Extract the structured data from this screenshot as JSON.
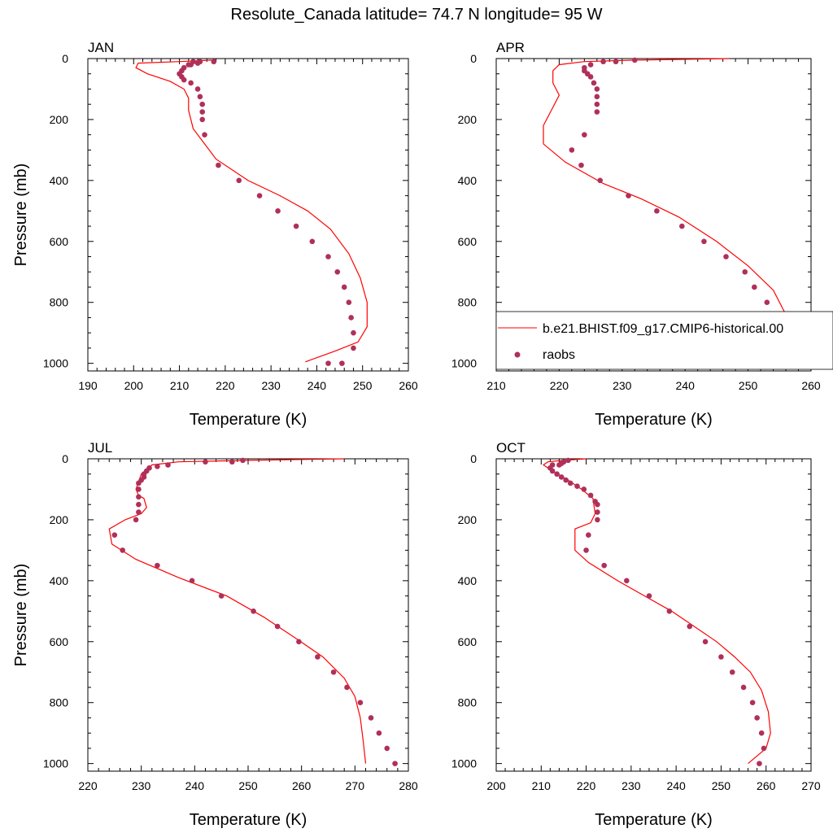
{
  "title": "Resolute_Canada  latitude= 74.7 N longitude= 95 W",
  "colors": {
    "model": "#ff0000",
    "obs": "#b0305a"
  },
  "legend": {
    "model_label": "b.e21.BHIST.f09_g17.CMIP6-historical.00",
    "obs_label": "raobs"
  },
  "chart_data": [
    {
      "type": "line",
      "panel": "JAN",
      "xlabel": "Temperature (K)",
      "ylabel": "Pressure (mb)",
      "xlim": [
        190,
        260
      ],
      "xticks": [
        190,
        200,
        210,
        220,
        230,
        240,
        250,
        260
      ],
      "ylim": [
        0,
        1025
      ],
      "yticks": [
        0,
        200,
        400,
        600,
        800,
        1000
      ],
      "y_reversed": true,
      "model": {
        "x": [
          217.0,
          210.0,
          201.0,
          200.5,
          203.0,
          208.0,
          211.0,
          212.0,
          212.0,
          213.0,
          218.0,
          225.0,
          232.0,
          238.0,
          243.0,
          247.0,
          249.5,
          251.0,
          251.0,
          249.0,
          244.0,
          237.5
        ],
        "y": [
          5,
          10,
          15,
          30,
          50,
          75,
          100,
          130,
          170,
          230,
          330,
          400,
          450,
          500,
          560,
          640,
          720,
          800,
          880,
          930,
          960,
          995
        ]
      },
      "obs": {
        "x": [
          217.5,
          214.5,
          214.0,
          213.0,
          212.5,
          212.0,
          211.0,
          210.5,
          210.0,
          210.5,
          211.0,
          212.5,
          214.0,
          214.5,
          215.0,
          215.0,
          215.0,
          215.5,
          218.5,
          223.0,
          227.5,
          231.5,
          235.5,
          239.0,
          242.5,
          244.5,
          246.0,
          247.0,
          247.5,
          248.0,
          248.0,
          245.5,
          242.5
        ],
        "y": [
          10,
          10,
          15,
          10,
          20,
          20,
          30,
          40,
          50,
          60,
          70,
          80,
          100,
          125,
          150,
          175,
          200,
          250,
          350,
          400,
          450,
          500,
          550,
          600,
          650,
          700,
          750,
          800,
          850,
          900,
          950,
          1000,
          1000
        ]
      }
    },
    {
      "type": "line",
      "panel": "APR",
      "xlabel": "Temperature (K)",
      "ylabel": "",
      "xlim": [
        210,
        260
      ],
      "xticks": [
        210,
        220,
        230,
        240,
        250,
        260
      ],
      "ylim": [
        0,
        1025
      ],
      "yticks": [
        0,
        200,
        400,
        600,
        800,
        1000
      ],
      "y_reversed": true,
      "model": {
        "x": [
          247.0,
          232.0,
          224.0,
          220.0,
          219.0,
          219.0,
          220.0,
          219.0,
          217.5,
          217.5,
          221.0,
          227.0,
          233.0,
          239.0,
          245.0,
          250.0,
          254.0,
          256.0,
          256.5,
          256.5,
          254.0,
          250.0
        ],
        "y": [
          0,
          5,
          10,
          20,
          40,
          80,
          120,
          160,
          220,
          280,
          340,
          410,
          460,
          520,
          600,
          680,
          760,
          840,
          900,
          960,
          990,
          1000
        ]
      },
      "obs": {
        "x": [
          232.0,
          229.0,
          227.0,
          225.0,
          224.0,
          224.0,
          224.5,
          225.0,
          225.5,
          226.0,
          226.0,
          226.0,
          226.0,
          224.0,
          222.0,
          223.5,
          226.5,
          231.0,
          235.5,
          239.5,
          243.0,
          246.5,
          249.5,
          251.0,
          253.0,
          253.5,
          254.0,
          253.0,
          251.0
        ],
        "y": [
          5,
          10,
          10,
          20,
          30,
          40,
          50,
          60,
          80,
          100,
          125,
          150,
          175,
          250,
          300,
          350,
          400,
          450,
          500,
          550,
          600,
          650,
          700,
          750,
          800,
          850,
          900,
          950,
          1000
        ]
      }
    },
    {
      "type": "line",
      "panel": "JUL",
      "xlabel": "Temperature (K)",
      "ylabel": "Pressure (mb)",
      "xlim": [
        220,
        280
      ],
      "xticks": [
        220,
        230,
        240,
        250,
        260,
        270,
        280
      ],
      "ylim": [
        0,
        1025
      ],
      "yticks": [
        0,
        200,
        400,
        600,
        800,
        1000
      ],
      "y_reversed": true,
      "model": {
        "x": [
          268.0,
          250.0,
          237.0,
          232.0,
          230.0,
          229.0,
          229.5,
          230.5,
          231.0,
          230.0,
          227.0,
          224.0,
          224.5,
          229.0,
          237.0,
          246.0,
          253.0,
          259.0,
          264.0,
          268.0,
          270.0,
          271.0,
          271.5,
          272.0
        ],
        "y": [
          0,
          5,
          10,
          20,
          50,
          100,
          120,
          130,
          160,
          180,
          200,
          230,
          280,
          330,
          390,
          450,
          520,
          590,
          650,
          720,
          780,
          850,
          920,
          1000
        ]
      },
      "obs": {
        "x": [
          249.0,
          247.0,
          242.0,
          235.0,
          233.0,
          231.5,
          231.0,
          230.5,
          230.5,
          230.0,
          229.5,
          229.5,
          229.5,
          229.5,
          229.5,
          229.0,
          225.0,
          226.5,
          233.0,
          239.5,
          245.0,
          251.0,
          255.5,
          259.5,
          263.0,
          266.0,
          268.5,
          271.0,
          273.0,
          274.5,
          276.0,
          277.5
        ],
        "y": [
          5,
          10,
          10,
          20,
          25,
          30,
          40,
          50,
          60,
          70,
          80,
          100,
          125,
          150,
          175,
          200,
          250,
          300,
          350,
          400,
          450,
          500,
          550,
          600,
          650,
          700,
          750,
          800,
          850,
          900,
          950,
          1000
        ]
      }
    },
    {
      "type": "line",
      "panel": "OCT",
      "xlabel": "Temperature (K)",
      "ylabel": "",
      "xlim": [
        200,
        270
      ],
      "xticks": [
        200,
        210,
        220,
        230,
        240,
        250,
        260,
        270
      ],
      "ylim": [
        0,
        1025
      ],
      "yticks": [
        0,
        200,
        400,
        600,
        800,
        1000
      ],
      "y_reversed": true,
      "model": {
        "x": [
          220.0,
          215.0,
          211.5,
          210.5,
          212.5,
          216.0,
          219.0,
          221.5,
          222.0,
          221.0,
          217.5,
          217.5,
          220.5,
          227.0,
          233.0,
          239.0,
          244.0,
          249.0,
          253.0,
          256.5,
          259.0,
          260.5,
          261.0,
          260.0,
          256.0
        ],
        "y": [
          0,
          5,
          10,
          20,
          40,
          70,
          100,
          130,
          180,
          210,
          230,
          300,
          340,
          400,
          450,
          500,
          550,
          600,
          650,
          700,
          760,
          830,
          900,
          950,
          1000
        ]
      },
      "obs": {
        "x": [
          216.0,
          215.0,
          214.5,
          214.0,
          212.5,
          212.0,
          212.5,
          213.5,
          214.5,
          215.5,
          216.5,
          218.0,
          219.5,
          221.0,
          222.0,
          222.5,
          222.5,
          222.5,
          220.5,
          220.0,
          224.0,
          229.0,
          234.0,
          238.5,
          243.0,
          246.5,
          250.0,
          252.5,
          255.0,
          257.0,
          258.0,
          259.0,
          259.5,
          258.5
        ],
        "y": [
          5,
          10,
          15,
          20,
          20,
          30,
          40,
          50,
          60,
          70,
          80,
          90,
          100,
          120,
          140,
          150,
          175,
          200,
          250,
          300,
          350,
          400,
          450,
          500,
          550,
          600,
          650,
          700,
          750,
          800,
          850,
          900,
          950,
          1000
        ]
      }
    }
  ]
}
